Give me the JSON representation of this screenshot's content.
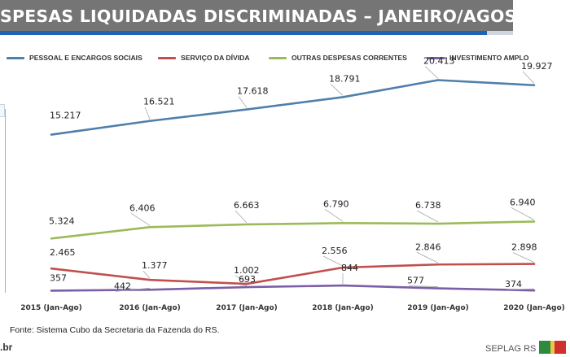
{
  "header": {
    "title": "SPESAS LIQUIDADAS DISCRIMINADAS – JANEIRO/AGOSTO"
  },
  "colors": {
    "title_bg": "#757575",
    "accent": "#1f63b6",
    "pessoal": "#4f7fab",
    "servico": "#c0504d",
    "outras": "#9bbb59",
    "investimento": "#7b5ea7"
  },
  "chart_data": {
    "type": "line",
    "title": "SPESAS LIQUIDADAS DISCRIMINADAS – JANEIRO/AGOSTO",
    "xlabel": "",
    "ylabel": "",
    "ylim": [
      0,
      22000
    ],
    "grid": false,
    "legend_position": "top",
    "categories": [
      "2015 (Jan-Ago)",
      "2016 (Jan-Ago)",
      "2017 (Jan-Ago)",
      "2018 (Jan-Ago)",
      "2019 (Jan-Ago)",
      "2020 (Jan-Ago)"
    ],
    "series": [
      {
        "key": "pessoal",
        "name": "PESSOAL E ENCARGOS SOCIAIS",
        "color": "#4f7fab",
        "values": [
          15217,
          16521,
          17618,
          18791,
          20413,
          19927
        ],
        "labels": [
          "15.217",
          "16.521",
          "17.618",
          "18.791",
          "20.413",
          "19.927"
        ]
      },
      {
        "key": "servico",
        "name": "SERVIÇO DA DÍVIDA",
        "color": "#c0504d",
        "values": [
          2465,
          1377,
          1002,
          2556,
          2846,
          2898
        ],
        "labels": [
          "2.465",
          "1.377",
          "1.002",
          "2.556",
          "2.846",
          "2.898"
        ]
      },
      {
        "key": "outras",
        "name": "OUTRAS DESPESAS CORRENTES",
        "color": "#9bbb59",
        "values": [
          5324,
          6406,
          6663,
          6790,
          6738,
          6940
        ],
        "labels": [
          "5.324",
          "6.406",
          "6.663",
          "6.790",
          "6.738",
          "6.940"
        ]
      },
      {
        "key": "investimento",
        "name": "INVESTIMENTO AMPLO",
        "color": "#7b5ea7",
        "values": [
          357,
          442,
          693,
          844,
          577,
          374
        ],
        "labels": [
          "357",
          "442",
          "693",
          "844",
          "577",
          "374"
        ]
      }
    ]
  },
  "footer": {
    "source": "Fonte: Sistema Cubo da Secretaria da Fazenda do RS.",
    "url_fragment": ".br",
    "org": "SEPLAG RS"
  }
}
